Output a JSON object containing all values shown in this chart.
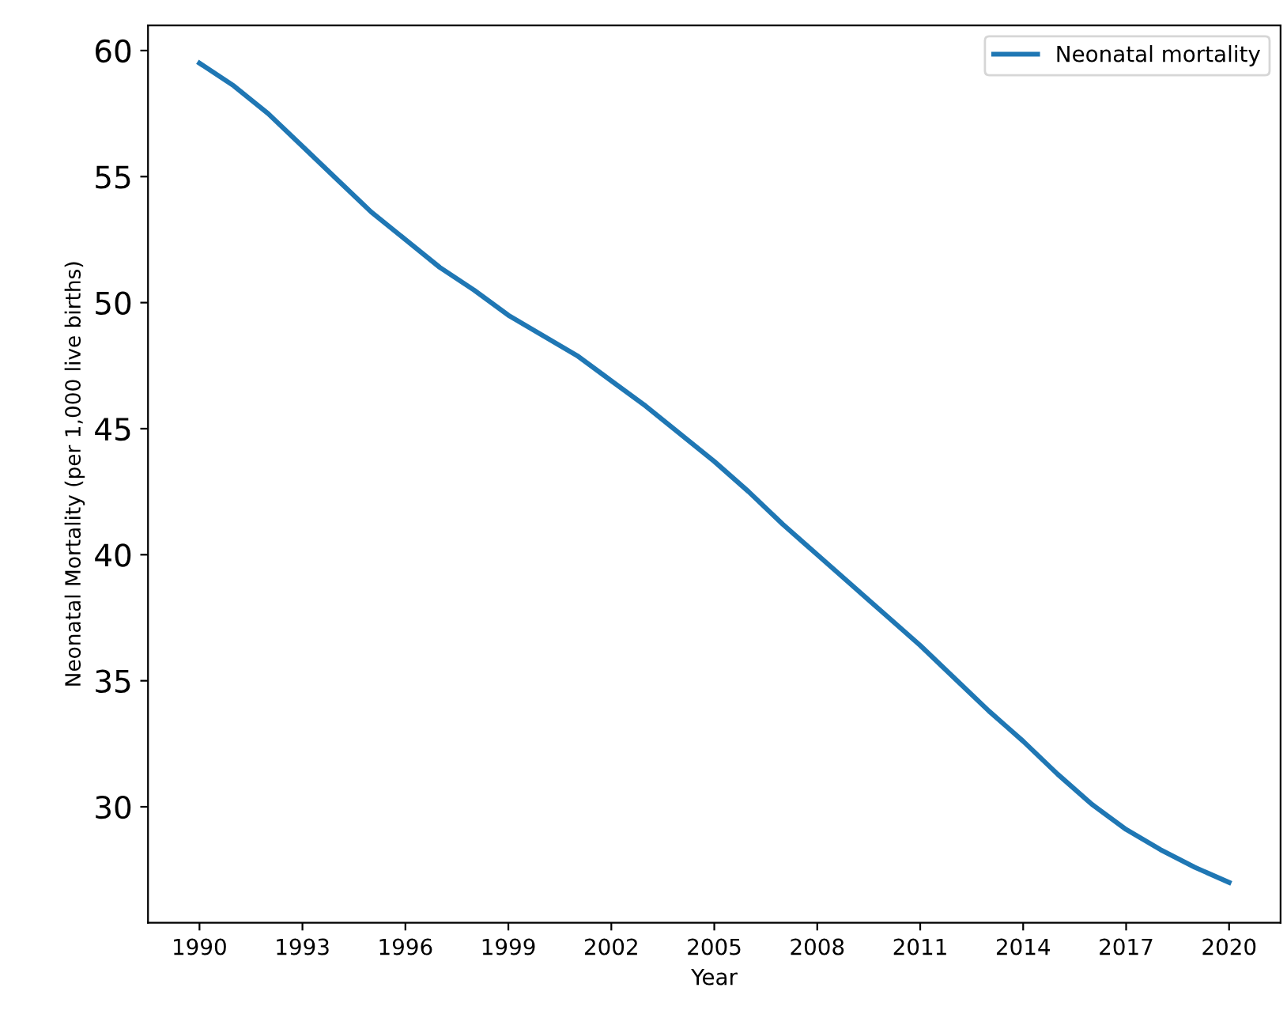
{
  "chart_data": {
    "type": "line",
    "xlabel": "Year",
    "ylabel": "Neonatal Mortality (per 1,000 live births)",
    "x": [
      1990,
      1991,
      1992,
      1993,
      1994,
      1995,
      1996,
      1997,
      1998,
      1999,
      2000,
      2001,
      2002,
      2003,
      2004,
      2005,
      2006,
      2007,
      2008,
      2009,
      2010,
      2011,
      2012,
      2013,
      2014,
      2015,
      2016,
      2017,
      2018,
      2019,
      2020
    ],
    "series": [
      {
        "name": "Neonatal mortality",
        "color": "#1f77b4",
        "values": [
          59.5,
          58.6,
          57.5,
          56.2,
          54.9,
          53.6,
          52.5,
          51.4,
          50.5,
          49.5,
          48.7,
          47.9,
          46.9,
          45.9,
          44.8,
          43.7,
          42.5,
          41.2,
          40.0,
          38.8,
          37.6,
          36.4,
          35.1,
          33.8,
          32.6,
          31.3,
          30.1,
          29.1,
          28.3,
          27.6,
          27.0
        ]
      }
    ],
    "xlim": [
      1988.5,
      2021.5
    ],
    "xticks": [
      1990,
      1993,
      1996,
      1999,
      2002,
      2005,
      2008,
      2011,
      2014,
      2017,
      2020
    ],
    "ylim": [
      25.4,
      61.0
    ],
    "yticks": [
      30,
      35,
      40,
      45,
      50,
      55,
      60
    ],
    "legend": "top right",
    "grid": false
  }
}
